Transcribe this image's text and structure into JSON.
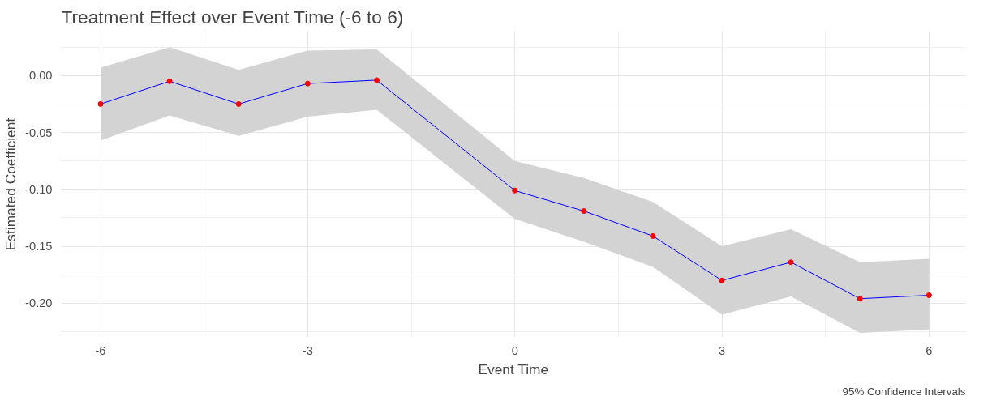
{
  "chart_data": {
    "type": "line",
    "title": "Treatment Effect over Event Time (-6 to 6)",
    "xlabel": "Event Time",
    "ylabel": "Estimated Coefficient",
    "annotations": [
      "95% Confidence Intervals"
    ],
    "x": [
      -6,
      -5,
      -4,
      -3,
      -2,
      0,
      1,
      2,
      3,
      4,
      5,
      6
    ],
    "series": [
      {
        "color": "#0000ff",
        "marker": "none",
        "values": [
          -0.025,
          -0.005,
          -0.025,
          -0.007,
          -0.004,
          -0.101,
          -0.119,
          -0.141,
          -0.18,
          -0.164,
          -0.196,
          -0.193
        ],
        "lower": [
          -0.057,
          -0.035,
          -0.053,
          -0.036,
          -0.03,
          -0.126,
          -0.146,
          -0.168,
          -0.21,
          -0.194,
          -0.226,
          -0.223
        ],
        "upper": [
          0.007,
          0.025,
          0.005,
          0.022,
          0.023,
          -0.075,
          -0.09,
          -0.111,
          -0.15,
          -0.135,
          -0.164,
          -0.161
        ]
      },
      {
        "type": "scatter",
        "color": "#ff0000",
        "marker": "circle",
        "values": [
          -0.025,
          -0.005,
          -0.025,
          -0.007,
          -0.004,
          -0.101,
          -0.119,
          -0.141,
          -0.18,
          -0.164,
          -0.196,
          -0.193
        ]
      }
    ],
    "xlim": [
      -6.57,
      6.53
    ],
    "ylim": [
      -0.23,
      0.039
    ],
    "xticks": [
      -6,
      -3,
      0,
      3,
      6
    ],
    "yticks": [
      {
        "value": 0,
        "label": "0.00"
      },
      {
        "value": -0.05,
        "label": "-0.05"
      },
      {
        "value": -0.1,
        "label": "-0.10"
      },
      {
        "value": -0.15,
        "label": "-0.15"
      },
      {
        "value": -0.2,
        "label": "-0.20"
      }
    ],
    "grid": true
  }
}
